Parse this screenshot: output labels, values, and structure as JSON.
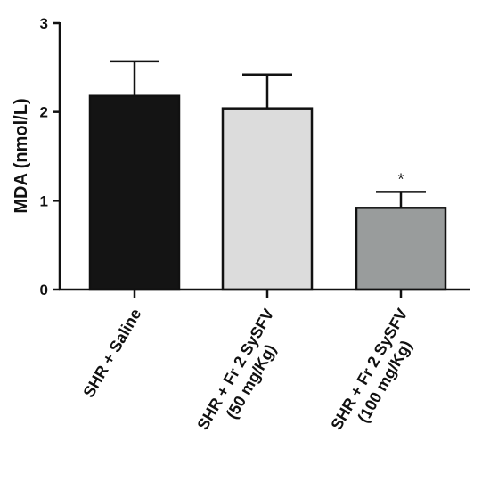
{
  "chart_data": {
    "type": "bar",
    "title": "",
    "ylabel": "MDA (nmol/L)",
    "xlabel": "",
    "ylim": [
      0,
      3
    ],
    "yticks": [
      0,
      1,
      2,
      3
    ],
    "grid": false,
    "categories": [
      [
        "SHR + Saline"
      ],
      [
        "SHR + Fr 2 SySFV",
        "(50 mg/Kg)"
      ],
      [
        "SHR + Fr 2 SySFV",
        "(100 mg/Kg)"
      ]
    ],
    "values": [
      2.18,
      2.04,
      0.92
    ],
    "errors": [
      0.39,
      0.38,
      0.18
    ],
    "colors": [
      "#141414",
      "#dcdcdc",
      "#999c9c"
    ],
    "annotations": [
      "",
      "",
      "*"
    ]
  }
}
